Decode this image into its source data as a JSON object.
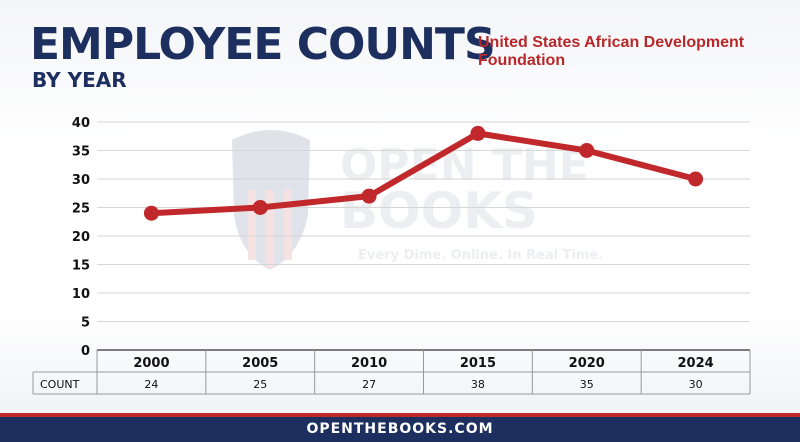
{
  "header": {
    "title": "EMPLOYEE COUNTS",
    "subtitle": "BY YEAR",
    "agency": "United States African Development Foundation"
  },
  "watermark": {
    "line1": "OPEN THE",
    "line2": "BOOKS",
    "tagline": "Every Dime. Online. In Real Time."
  },
  "footer": {
    "text": "OPENTHEBOOKS.COM"
  },
  "colors": {
    "line": "#c0282c",
    "navy": "#1d2f5e",
    "accent_red": "#b8282a"
  },
  "chart_data": {
    "type": "line",
    "categories": [
      "2000",
      "2005",
      "2010",
      "2015",
      "2020",
      "2024"
    ],
    "values": [
      24,
      25,
      27,
      38,
      35,
      30
    ],
    "ylim": [
      0,
      40
    ],
    "yticks": [
      0,
      5,
      10,
      15,
      20,
      25,
      30,
      35,
      40
    ],
    "table_row_label": "COUNT",
    "grid": true,
    "legend": "none"
  }
}
